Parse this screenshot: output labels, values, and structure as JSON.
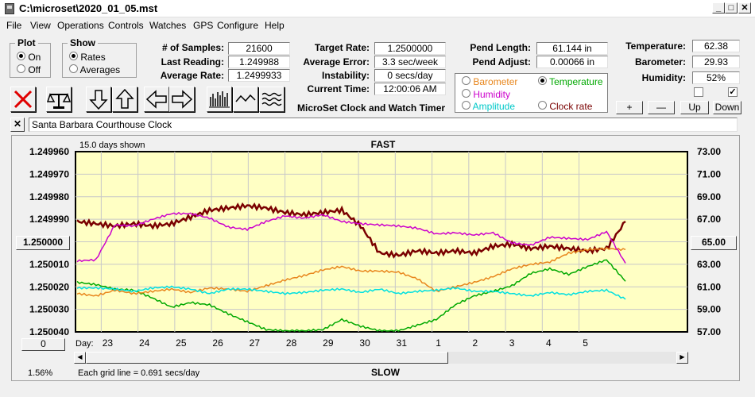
{
  "window": {
    "title": "C:\\microset\\2020_01_05.mst",
    "min": "_",
    "max": "□",
    "close": "✕"
  },
  "menu": [
    "File",
    "View",
    "Operations",
    "Controls",
    "Watches",
    "GPS",
    "Configure",
    "Help"
  ],
  "plot_group": {
    "title": "Plot",
    "on": "On",
    "off": "Off",
    "selected": "On"
  },
  "show_group": {
    "title": "Show",
    "rates": "Rates",
    "averages": "Averages",
    "selected": "Rates"
  },
  "stats": {
    "samples_label": "# of Samples:",
    "samples": "21600",
    "last_label": "Last Reading:",
    "last": "1.249988",
    "avg_label": "Average Rate:",
    "avg": "1.2499933"
  },
  "rates": {
    "target_label": "Target Rate:",
    "target": "1.2500000",
    "error_label": "Average Error:",
    "error": "3.3 sec/week",
    "instab_label": "Instability:",
    "instab": "0 secs/day",
    "time_label": "Current Time:",
    "time": "12:00:06 AM",
    "product": "MicroSet Clock and Watch Timer"
  },
  "pend": {
    "length_label": "Pend Length:",
    "length": "61.144 in",
    "adjust_label": "Pend Adjust:",
    "adjust": "0.00066 in"
  },
  "series_select": {
    "barometer": "Barometer",
    "temperature": "Temperature",
    "humidity": "Humidity",
    "amplitude": "Amplitude",
    "clock_rate": "Clock rate",
    "selected": "Temperature",
    "colors": {
      "barometer": "#e8861c",
      "temperature": "#00a800",
      "humidity": "#cc00cc",
      "amplitude": "#00e0e0",
      "clock_rate": "#7a0000"
    }
  },
  "env": {
    "temp_label": "Temperature:",
    "temp": "62.38",
    "baro_label": "Barometer:",
    "baro": "29.93",
    "hum_label": "Humidity:",
    "hum": "52%",
    "check1": false,
    "check2": true
  },
  "adjust_buttons": {
    "plus": "+",
    "minus": "—",
    "up": "Up",
    "down": "Down"
  },
  "toolbar_icons": [
    "x-icon",
    "scale-icon",
    "arrow-down-icon",
    "arrow-up-icon",
    "arrow-left-icon",
    "arrow-right-icon",
    "bars-icon",
    "wave-icon",
    "waves-icon"
  ],
  "clock_name": "Santa Barbara Courthouse Clock",
  "chart_data": {
    "type": "line",
    "days_shown": "15.0 days shown",
    "top_label": "FAST",
    "bottom_label": "SLOW",
    "left_ticks": [
      "1.249960",
      "1.249970",
      "1.249980",
      "1.249990",
      "1.250000",
      "1.250010",
      "1.250020",
      "1.250030",
      "1.250040"
    ],
    "left_range": [
      1.24996,
      1.25004
    ],
    "left_center": "1.250000",
    "right_ticks": [
      "73.00",
      "71.00",
      "69.00",
      "67.00",
      "65.00",
      "63.00",
      "61.00",
      "59.00",
      "57.00"
    ],
    "right_range": [
      73,
      57
    ],
    "right_center": "65.00",
    "x_label": "Day:",
    "days": [
      "23",
      "24",
      "25",
      "26",
      "27",
      "28",
      "29",
      "30",
      "31",
      "1",
      "2",
      "3",
      "4",
      "5"
    ],
    "zero_button": "0",
    "percent": "1.56%",
    "grid_note": "Each grid line = 0.691 secs/day",
    "grid": true,
    "series": [
      {
        "key": "clock_rate",
        "values": [
          1.249991,
          1.249992,
          1.249993,
          1.249992,
          1.249993,
          1.249992,
          1.249989,
          1.249986,
          1.249985,
          1.249984,
          1.249985,
          1.249987,
          1.249988,
          1.249987,
          1.249986,
          1.249993,
          1.250005,
          1.250006,
          1.250004,
          1.250005,
          1.250004,
          1.250005,
          1.250002,
          1.250001,
          1.250003,
          1.250002,
          1.250003,
          1.250004,
          1.250003,
          1.249991
        ]
      },
      {
        "key": "temperature",
        "values": [
          61.4,
          61.2,
          60.8,
          60.7,
          60.0,
          59.2,
          59.6,
          59.4,
          58.6,
          57.9,
          57.2,
          57.1,
          57.1,
          57.2,
          58.1,
          57.5,
          57.1,
          57.1,
          57.6,
          58.1,
          59.4,
          60.2,
          60.6,
          61.1,
          62.2,
          62.6,
          62.1,
          62.8,
          63.4,
          61.5
        ]
      },
      {
        "key": "barometer",
        "values": [
          60.4,
          60.2,
          60.7,
          60.4,
          60.6,
          60.8,
          60.5,
          60.9,
          60.8,
          60.6,
          61.1,
          61.6,
          62.0,
          62.5,
          62.8,
          62.4,
          62.4,
          62.3,
          61.7,
          60.6,
          61.0,
          61.4,
          61.9,
          62.6,
          63.0,
          63.2,
          64.0,
          64.3,
          64.4,
          64.3
        ]
      },
      {
        "key": "amplitude",
        "values": [
          60.9,
          60.9,
          60.8,
          60.6,
          60.9,
          61.0,
          60.8,
          60.4,
          60.8,
          60.8,
          60.6,
          60.4,
          60.5,
          60.7,
          60.8,
          60.5,
          60.8,
          60.4,
          60.6,
          60.7,
          60.9,
          60.6,
          60.6,
          60.4,
          60.2,
          60.5,
          60.3,
          60.6,
          60.7,
          59.9
        ]
      },
      {
        "key": "humidity",
        "values": [
          63.3,
          63.4,
          66.5,
          66.4,
          67.0,
          67.5,
          67.5,
          67.1,
          66.3,
          66.1,
          66.8,
          67.3,
          67.1,
          67.4,
          66.8,
          66.6,
          66.5,
          66.4,
          66.2,
          65.7,
          65.8,
          65.6,
          65.8,
          64.9,
          64.7,
          65.4,
          65.3,
          65.2,
          65.9,
          63.1
        ]
      }
    ]
  }
}
